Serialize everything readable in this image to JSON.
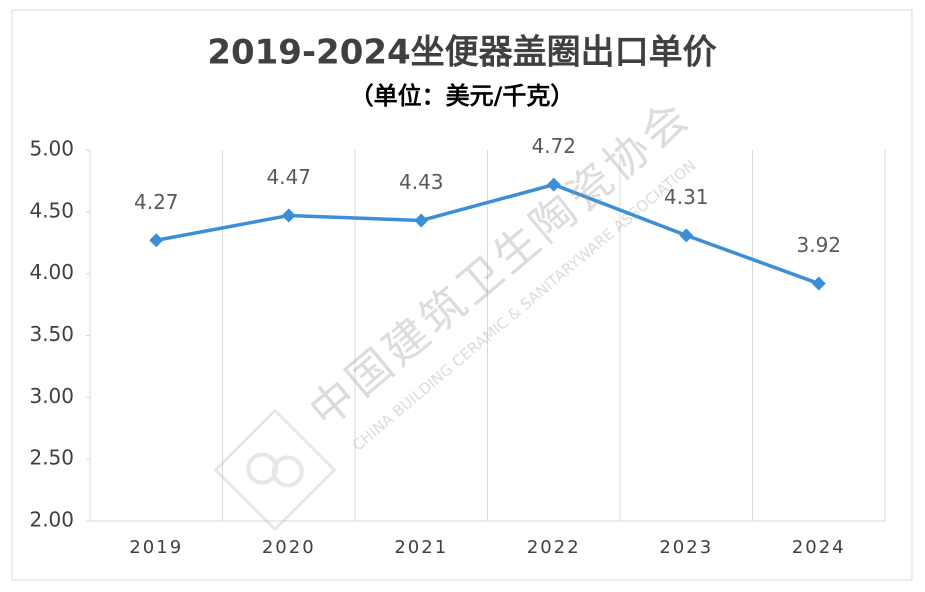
{
  "chart_data": {
    "type": "line",
    "title": "2019-2024坐便器盖圈出口单价",
    "subtitle": "（单位：美元/千克）",
    "categories": [
      "2019",
      "2020",
      "2021",
      "2022",
      "2023",
      "2024"
    ],
    "series": [
      {
        "name": "坐便器盖圈出口单价",
        "color": "#3c8fd6",
        "values": [
          4.27,
          4.47,
          4.43,
          4.72,
          4.31,
          3.92
        ]
      }
    ],
    "ylim": [
      2,
      5
    ],
    "yticks": [
      {
        "value": 2,
        "label": "2.00"
      },
      {
        "value": 2.5,
        "label": "2.50"
      },
      {
        "value": 3,
        "label": "3.00"
      },
      {
        "value": 3.5,
        "label": "3.50"
      },
      {
        "value": 4,
        "label": "4.00"
      },
      {
        "value": 4.5,
        "label": "4.50"
      },
      {
        "value": 5,
        "label": "5.00"
      }
    ],
    "data_labels": true,
    "legend": false,
    "watermark": {
      "cn": "中国建筑卫生陶瓷协会",
      "en": "CHINA BUILDING CERAMIC & SANITARYWARE ASSOCIATION"
    }
  }
}
